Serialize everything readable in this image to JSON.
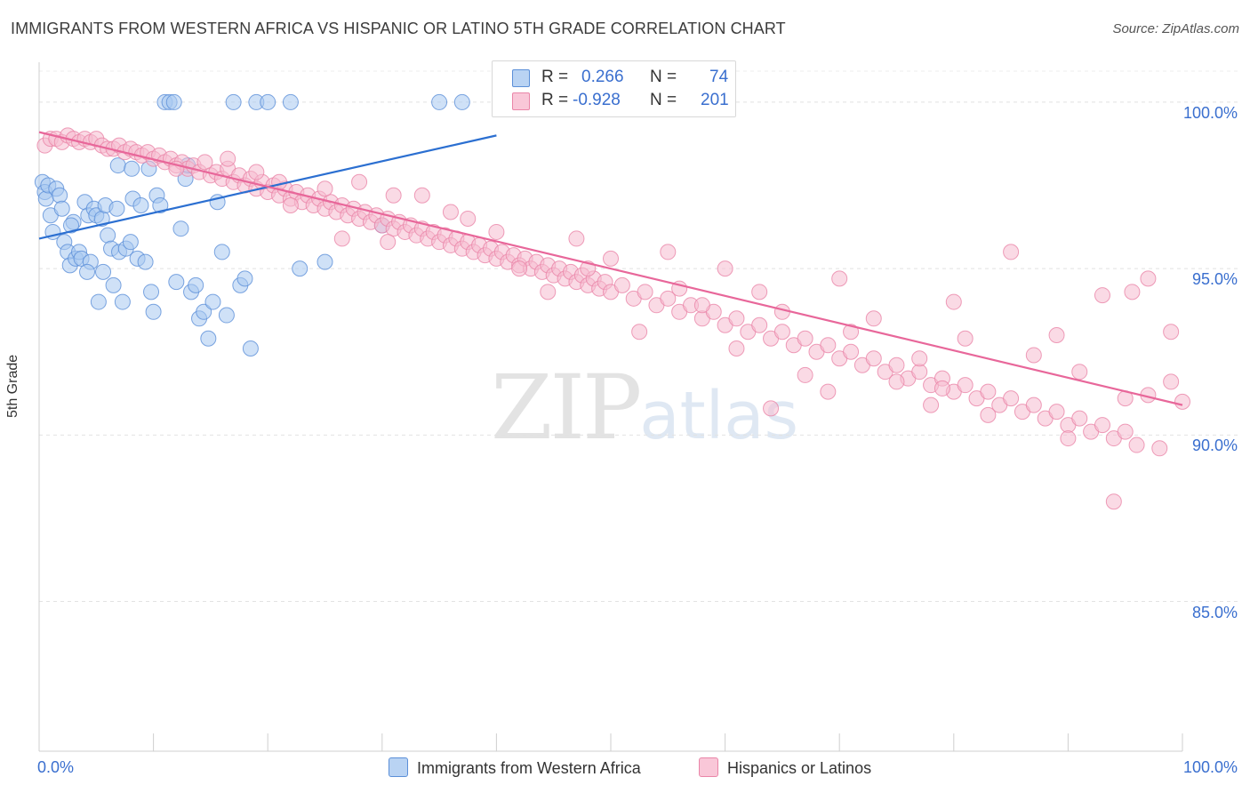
{
  "title": "IMMIGRANTS FROM WESTERN AFRICA VS HISPANIC OR LATINO 5TH GRADE CORRELATION CHART",
  "source": "Source: ZipAtlas.com",
  "watermark": {
    "zip": "ZIP",
    "atlas": "atlas"
  },
  "legend": {
    "r_label": "R =",
    "n_label": "N =",
    "series1": {
      "r": "0.266",
      "n": "74"
    },
    "series2": {
      "r": "-0.928",
      "n": "201"
    }
  },
  "chart_data": {
    "type": "scatter",
    "xlabel": "",
    "ylabel": "5th Grade",
    "xlim": [
      0,
      100
    ],
    "ylim": [
      80.5,
      101.2
    ],
    "x_tick_labels": [
      "0.0%",
      "100.0%"
    ],
    "y_ticks": [
      85,
      90,
      95,
      100
    ],
    "y_tick_labels": [
      "85.0%",
      "90.0%",
      "95.0%",
      "100.0%"
    ],
    "grid": true,
    "legend_position": "bottom",
    "series": [
      {
        "name": "Immigrants from Western Africa",
        "color": "#a8c8f0",
        "edge": "#5b8fd8",
        "trend_color": "#2b6fd1",
        "trend": {
          "x0": 0,
          "y0": 95.9,
          "x1": 40,
          "y1": 99.0
        },
        "points": [
          [
            0.3,
            97.6
          ],
          [
            0.5,
            97.3
          ],
          [
            0.6,
            97.1
          ],
          [
            0.8,
            97.5
          ],
          [
            1.0,
            96.6
          ],
          [
            1.2,
            96.1
          ],
          [
            1.5,
            97.4
          ],
          [
            1.8,
            97.2
          ],
          [
            2.0,
            96.8
          ],
          [
            2.2,
            95.8
          ],
          [
            2.5,
            95.5
          ],
          [
            2.7,
            95.1
          ],
          [
            3.0,
            96.4
          ],
          [
            3.2,
            95.3
          ],
          [
            3.5,
            95.5
          ],
          [
            3.7,
            95.3
          ],
          [
            4.0,
            97.0
          ],
          [
            4.3,
            96.6
          ],
          [
            4.5,
            95.2
          ],
          [
            4.8,
            96.8
          ],
          [
            5.0,
            96.6
          ],
          [
            5.2,
            94.0
          ],
          [
            5.5,
            96.5
          ],
          [
            5.8,
            96.9
          ],
          [
            6.0,
            96.0
          ],
          [
            6.3,
            95.6
          ],
          [
            6.5,
            94.5
          ],
          [
            6.8,
            96.8
          ],
          [
            7.0,
            95.5
          ],
          [
            7.3,
            94.0
          ],
          [
            7.6,
            95.6
          ],
          [
            8.0,
            95.8
          ],
          [
            8.2,
            97.1
          ],
          [
            8.6,
            95.3
          ],
          [
            8.9,
            96.9
          ],
          [
            9.3,
            95.2
          ],
          [
            9.8,
            94.3
          ],
          [
            10.0,
            93.7
          ],
          [
            10.3,
            97.2
          ],
          [
            10.6,
            96.9
          ],
          [
            11.0,
            100.0
          ],
          [
            11.4,
            100.0
          ],
          [
            11.8,
            100.0
          ],
          [
            12.0,
            94.6
          ],
          [
            12.4,
            96.2
          ],
          [
            12.8,
            97.7
          ],
          [
            13.0,
            98.1
          ],
          [
            13.3,
            94.3
          ],
          [
            13.7,
            94.5
          ],
          [
            14.0,
            93.5
          ],
          [
            14.4,
            93.7
          ],
          [
            14.8,
            92.9
          ],
          [
            15.2,
            94.0
          ],
          [
            15.6,
            97.0
          ],
          [
            16.0,
            95.5
          ],
          [
            16.4,
            93.6
          ],
          [
            17.0,
            100.0
          ],
          [
            17.6,
            94.5
          ],
          [
            18.0,
            94.7
          ],
          [
            18.5,
            92.6
          ],
          [
            19.0,
            100.0
          ],
          [
            20.0,
            100.0
          ],
          [
            22.0,
            100.0
          ],
          [
            22.8,
            95.0
          ],
          [
            25.0,
            95.2
          ],
          [
            30.0,
            96.3
          ],
          [
            35.0,
            100.0
          ],
          [
            37.0,
            100.0
          ],
          [
            4.2,
            94.9
          ],
          [
            5.6,
            94.9
          ],
          [
            2.8,
            96.3
          ],
          [
            6.9,
            98.1
          ],
          [
            8.1,
            98.0
          ],
          [
            9.6,
            98.0
          ]
        ]
      },
      {
        "name": "Hispanics or Latinos",
        "color": "#f6bccf",
        "edge": "#ea85a8",
        "trend_color": "#e8679a",
        "trend": {
          "x0": 0,
          "y0": 99.1,
          "x1": 100,
          "y1": 90.9
        },
        "points": [
          [
            0.5,
            98.7
          ],
          [
            1.0,
            98.9
          ],
          [
            1.5,
            98.9
          ],
          [
            2.0,
            98.8
          ],
          [
            2.5,
            99.0
          ],
          [
            3.0,
            98.9
          ],
          [
            3.5,
            98.8
          ],
          [
            4.0,
            98.9
          ],
          [
            4.5,
            98.8
          ],
          [
            5.0,
            98.9
          ],
          [
            5.5,
            98.7
          ],
          [
            6.0,
            98.6
          ],
          [
            6.5,
            98.6
          ],
          [
            7.0,
            98.7
          ],
          [
            7.5,
            98.5
          ],
          [
            8.0,
            98.6
          ],
          [
            8.5,
            98.5
          ],
          [
            9.0,
            98.4
          ],
          [
            9.5,
            98.5
          ],
          [
            10.0,
            98.3
          ],
          [
            10.5,
            98.4
          ],
          [
            11.0,
            98.2
          ],
          [
            11.5,
            98.3
          ],
          [
            12.0,
            98.1
          ],
          [
            12.5,
            98.2
          ],
          [
            13.0,
            98.0
          ],
          [
            13.5,
            98.1
          ],
          [
            14.0,
            97.9
          ],
          [
            14.5,
            98.2
          ],
          [
            15.0,
            97.8
          ],
          [
            15.5,
            97.9
          ],
          [
            16.0,
            97.7
          ],
          [
            16.5,
            98.0
          ],
          [
            17.0,
            97.6
          ],
          [
            17.5,
            97.8
          ],
          [
            18.0,
            97.5
          ],
          [
            18.5,
            97.7
          ],
          [
            19.0,
            97.4
          ],
          [
            19.5,
            97.6
          ],
          [
            20.0,
            97.3
          ],
          [
            20.5,
            97.5
          ],
          [
            21.0,
            97.2
          ],
          [
            21.5,
            97.4
          ],
          [
            22.0,
            97.1
          ],
          [
            22.5,
            97.3
          ],
          [
            23.0,
            97.0
          ],
          [
            23.5,
            97.2
          ],
          [
            24.0,
            96.9
          ],
          [
            24.5,
            97.1
          ],
          [
            25.0,
            96.8
          ],
          [
            25.5,
            97.0
          ],
          [
            26.0,
            96.7
          ],
          [
            26.5,
            96.9
          ],
          [
            27.0,
            96.6
          ],
          [
            27.5,
            96.8
          ],
          [
            28.0,
            96.5
          ],
          [
            28.5,
            96.7
          ],
          [
            29.0,
            96.4
          ],
          [
            29.5,
            96.6
          ],
          [
            30.0,
            96.3
          ],
          [
            30.5,
            96.5
          ],
          [
            31.0,
            96.2
          ],
          [
            31.5,
            96.4
          ],
          [
            32.0,
            96.1
          ],
          [
            32.5,
            96.3
          ],
          [
            33.0,
            96.0
          ],
          [
            33.5,
            96.2
          ],
          [
            34.0,
            95.9
          ],
          [
            34.5,
            96.1
          ],
          [
            35.0,
            95.8
          ],
          [
            35.5,
            96.0
          ],
          [
            36.0,
            95.7
          ],
          [
            36.5,
            95.9
          ],
          [
            37.0,
            95.6
          ],
          [
            37.5,
            95.8
          ],
          [
            38.0,
            95.5
          ],
          [
            38.5,
            95.7
          ],
          [
            39.0,
            95.4
          ],
          [
            39.5,
            95.6
          ],
          [
            40.0,
            95.3
          ],
          [
            40.5,
            95.5
          ],
          [
            41.0,
            95.2
          ],
          [
            41.5,
            95.4
          ],
          [
            42.0,
            95.1
          ],
          [
            42.5,
            95.3
          ],
          [
            43.0,
            95.0
          ],
          [
            43.5,
            95.2
          ],
          [
            44.0,
            94.9
          ],
          [
            44.5,
            95.1
          ],
          [
            45.0,
            94.8
          ],
          [
            45.5,
            95.0
          ],
          [
            46.0,
            94.7
          ],
          [
            46.5,
            94.9
          ],
          [
            47.0,
            94.6
          ],
          [
            47.5,
            94.8
          ],
          [
            48.0,
            94.5
          ],
          [
            48.5,
            94.7
          ],
          [
            49.0,
            94.4
          ],
          [
            49.5,
            94.6
          ],
          [
            50.0,
            94.3
          ],
          [
            51.0,
            94.5
          ],
          [
            52.0,
            94.1
          ],
          [
            53.0,
            94.3
          ],
          [
            54.0,
            93.9
          ],
          [
            55.0,
            94.1
          ],
          [
            56.0,
            93.7
          ],
          [
            57.0,
            93.9
          ],
          [
            58.0,
            93.5
          ],
          [
            59.0,
            93.7
          ],
          [
            60.0,
            93.3
          ],
          [
            61.0,
            93.5
          ],
          [
            62.0,
            93.1
          ],
          [
            63.0,
            93.3
          ],
          [
            64.0,
            92.9
          ],
          [
            65.0,
            93.1
          ],
          [
            66.0,
            92.7
          ],
          [
            67.0,
            92.9
          ],
          [
            68.0,
            92.5
          ],
          [
            69.0,
            92.7
          ],
          [
            70.0,
            92.3
          ],
          [
            71.0,
            92.5
          ],
          [
            72.0,
            92.1
          ],
          [
            73.0,
            92.3
          ],
          [
            74.0,
            91.9
          ],
          [
            75.0,
            92.1
          ],
          [
            76.0,
            91.7
          ],
          [
            77.0,
            91.9
          ],
          [
            78.0,
            91.5
          ],
          [
            79.0,
            91.7
          ],
          [
            80.0,
            91.3
          ],
          [
            81.0,
            91.5
          ],
          [
            82.0,
            91.1
          ],
          [
            83.0,
            91.3
          ],
          [
            84.0,
            90.9
          ],
          [
            85.0,
            91.1
          ],
          [
            86.0,
            90.7
          ],
          [
            87.0,
            90.9
          ],
          [
            88.0,
            90.5
          ],
          [
            89.0,
            90.7
          ],
          [
            90.0,
            90.3
          ],
          [
            91.0,
            90.5
          ],
          [
            92.0,
            90.1
          ],
          [
            93.0,
            90.3
          ],
          [
            94.0,
            89.9
          ],
          [
            95.0,
            90.1
          ],
          [
            96.0,
            89.7
          ],
          [
            97.0,
            91.2
          ],
          [
            98.0,
            89.6
          ],
          [
            99.0,
            91.6
          ],
          [
            100.0,
            91.0
          ],
          [
            12.0,
            98.0
          ],
          [
            16.5,
            98.3
          ],
          [
            22.0,
            96.9
          ],
          [
            26.5,
            95.9
          ],
          [
            30.5,
            95.8
          ],
          [
            33.5,
            97.2
          ],
          [
            37.5,
            96.5
          ],
          [
            42.0,
            95.0
          ],
          [
            44.5,
            94.3
          ],
          [
            48.0,
            95.0
          ],
          [
            50.0,
            95.3
          ],
          [
            52.5,
            93.1
          ],
          [
            56.0,
            94.4
          ],
          [
            58.0,
            93.9
          ],
          [
            61.0,
            92.6
          ],
          [
            63.0,
            94.3
          ],
          [
            65.0,
            93.7
          ],
          [
            67.0,
            91.8
          ],
          [
            69.0,
            91.3
          ],
          [
            71.0,
            93.1
          ],
          [
            73.0,
            93.5
          ],
          [
            75.0,
            91.6
          ],
          [
            77.0,
            92.3
          ],
          [
            79.0,
            91.4
          ],
          [
            81.0,
            92.9
          ],
          [
            83.0,
            90.6
          ],
          [
            85.0,
            95.5
          ],
          [
            87.0,
            92.4
          ],
          [
            89.0,
            93.0
          ],
          [
            91.0,
            91.9
          ],
          [
            93.0,
            94.2
          ],
          [
            95.0,
            91.1
          ],
          [
            97.0,
            94.7
          ],
          [
            99.0,
            93.1
          ],
          [
            95.6,
            94.3
          ],
          [
            80.0,
            94.0
          ],
          [
            70.0,
            94.7
          ],
          [
            60.0,
            95.0
          ],
          [
            55.0,
            95.5
          ],
          [
            47.0,
            95.9
          ],
          [
            40.0,
            96.1
          ],
          [
            36.0,
            96.7
          ],
          [
            31.0,
            97.2
          ],
          [
            28.0,
            97.6
          ],
          [
            25.0,
            97.4
          ],
          [
            21.0,
            97.6
          ],
          [
            19.0,
            97.9
          ],
          [
            94.0,
            88.0
          ],
          [
            64.0,
            90.8
          ],
          [
            90.0,
            89.9
          ],
          [
            78.0,
            90.9
          ]
        ]
      }
    ]
  }
}
